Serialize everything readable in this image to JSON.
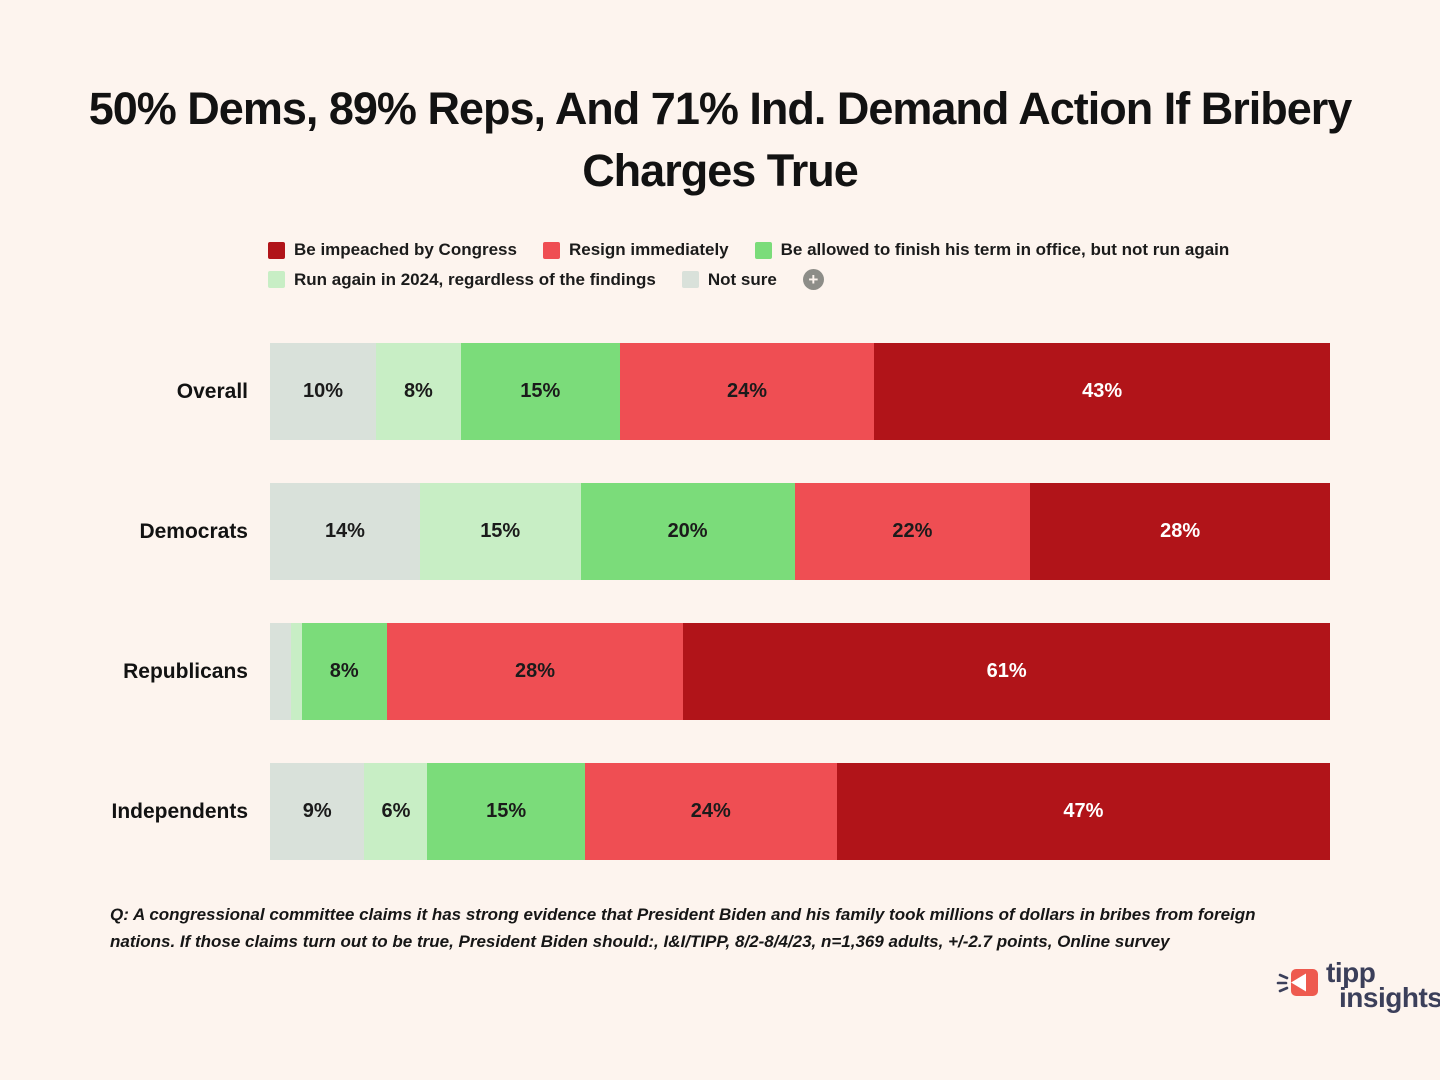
{
  "page": {
    "background": "#fdf4ee"
  },
  "legend": {
    "items": [
      {
        "label": "Be impeached by Congress",
        "color": "#b11419"
      },
      {
        "label": "Resign immediately",
        "color": "#ef4e53"
      },
      {
        "label": "Be allowed to finish his term in office, but not run again",
        "color": "#7bdc7a"
      },
      {
        "label": "Run again in 2024, regardless of the findings",
        "color": "#c8eec5"
      },
      {
        "label": "Not sure",
        "color": "#d9e1da"
      }
    ],
    "expand_icon_glyph": "+"
  },
  "chart_data": {
    "type": "bar",
    "stacked": true,
    "orientation": "horizontal",
    "unit": "%",
    "title": "50% Dems, 89% Reps, And 71% Ind. Demand Action If Bribery Charges True",
    "categories": [
      "Overall",
      "Democrats",
      "Republicans",
      "Independents"
    ],
    "series": [
      {
        "name": "Not sure",
        "color": "#d9e1da",
        "text_color": "#1b1b1b",
        "values": [
          10,
          14,
          2,
          9
        ],
        "labels": [
          "10%",
          "14%",
          "",
          "9%"
        ]
      },
      {
        "name": "Run again in 2024, regardless of the findings",
        "color": "#c8eec5",
        "text_color": "#1b1b1b",
        "values": [
          8,
          15,
          1,
          6
        ],
        "labels": [
          "8%",
          "15%",
          "",
          "6%"
        ]
      },
      {
        "name": "Be allowed to finish his term in office, but not run again",
        "color": "#7bdc7a",
        "text_color": "#1b1b1b",
        "values": [
          15,
          20,
          8,
          15
        ],
        "labels": [
          "15%",
          "20%",
          "8%",
          "15%"
        ]
      },
      {
        "name": "Resign immediately",
        "color": "#ef4e53",
        "text_color": "#1b1b1b",
        "values": [
          24,
          22,
          28,
          24
        ],
        "labels": [
          "24%",
          "22%",
          "28%",
          "24%"
        ]
      },
      {
        "name": "Be impeached by Congress",
        "color": "#b11419",
        "text_color": "#ffffff",
        "values": [
          43,
          28,
          61,
          47
        ],
        "labels": [
          "43%",
          "28%",
          "61%",
          "47%"
        ]
      }
    ],
    "xlim": [
      0,
      100
    ],
    "grid": false,
    "legend_position": "top"
  },
  "footnote": "Q: A congressional committee claims it has strong evidence that President Biden and his family took millions of dollars in bribes from foreign nations. If those claims turn out to be true, President Biden should:, I&I/TIPP, 8/2-8/4/23, n=1,369 adults, +/-2.7 points,  Online survey",
  "logo": {
    "line1": "tipp",
    "line2": "insights",
    "text_color": "#3b3f5a",
    "icon_color": "#ee5a4f"
  }
}
